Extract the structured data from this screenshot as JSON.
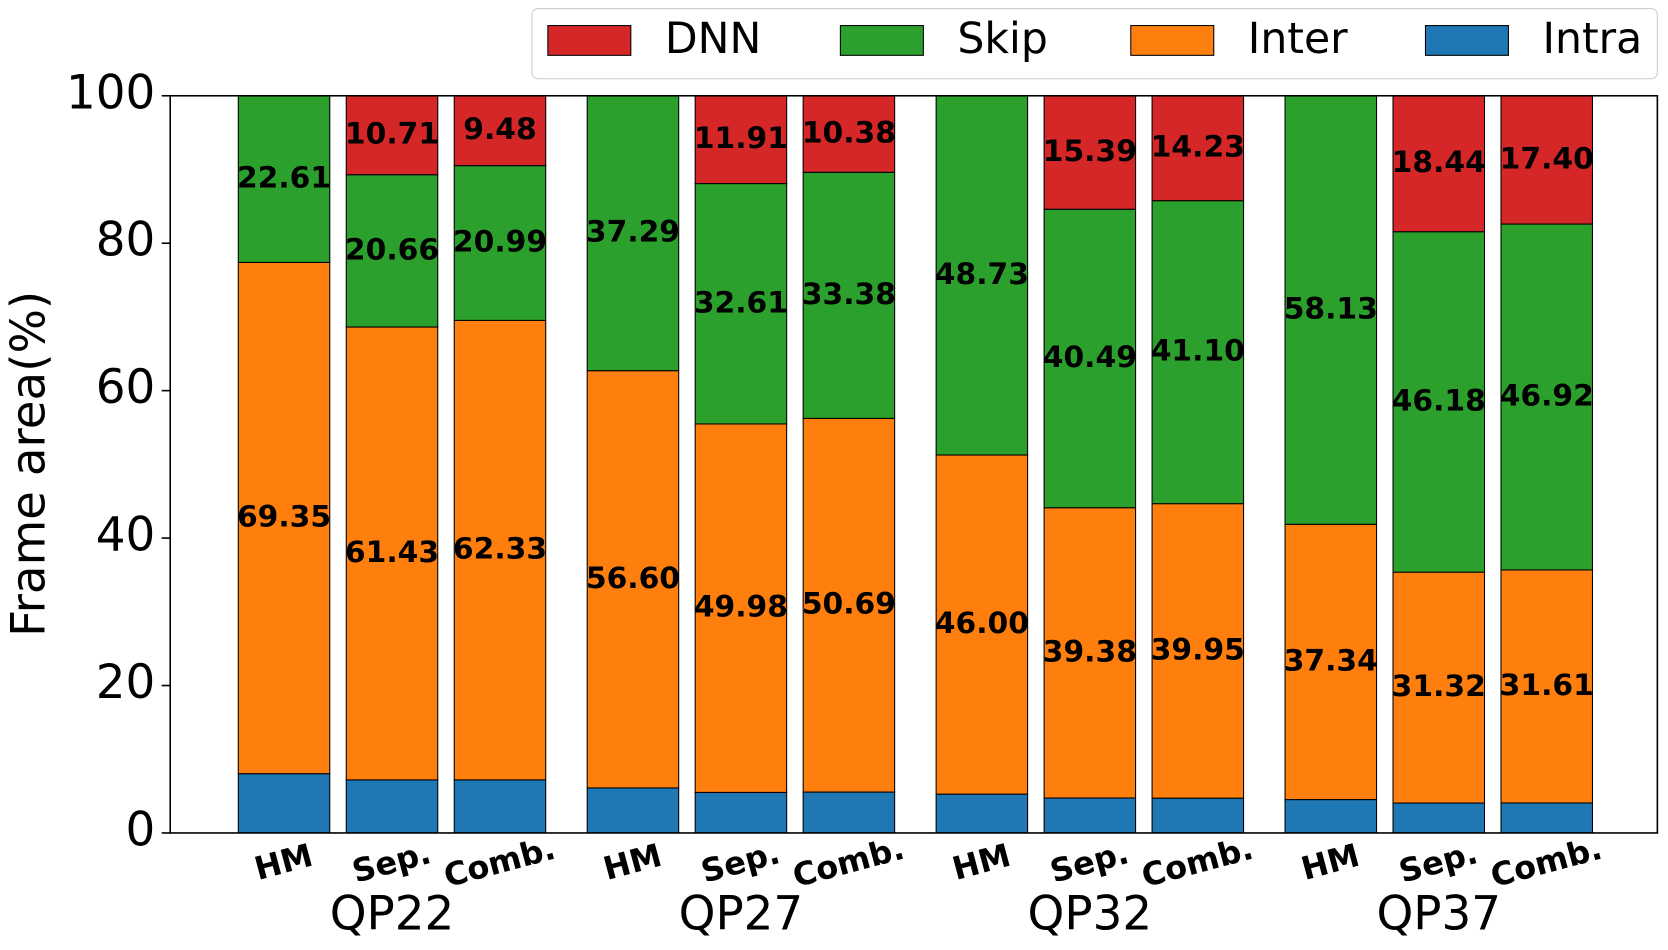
{
  "chart_data": {
    "type": "stacked_bar",
    "y_label": "Frame area(%)",
    "categories": [
      "HM",
      "Sep.",
      "Comb.",
      "HM",
      "Sep.",
      "Comb.",
      "HM",
      "Sep.",
      "Comb.",
      "HM",
      "Sep.",
      "Comb."
    ],
    "groups": [
      "QP22",
      "QP27",
      "QP32",
      "QP37"
    ],
    "series": [
      {
        "name": "DNN",
        "color": "#d62728",
        "values": [
          null,
          10.71,
          9.48,
          null,
          11.91,
          10.38,
          null,
          15.39,
          14.23,
          null,
          18.44,
          17.4
        ],
        "value_labels": [
          null,
          "10.71",
          "9.48",
          null,
          "11.91",
          "10.38",
          null,
          "15.39",
          "14.23",
          null,
          "18.44",
          "17.40"
        ]
      },
      {
        "name": "Skip",
        "color": "#2ca02c",
        "values": [
          22.61,
          20.66,
          20.99,
          37.29,
          32.61,
          33.38,
          48.73,
          40.49,
          41.1,
          58.13,
          46.18,
          46.92
        ],
        "value_labels": [
          "22.61",
          "20.66",
          "20.99",
          "37.29",
          "32.61",
          "33.38",
          "48.73",
          "40.49",
          "41.10",
          "58.13",
          "46.18",
          "46.92"
        ]
      },
      {
        "name": "Inter",
        "color": "#ff7f0e",
        "values": [
          69.35,
          61.43,
          62.33,
          56.6,
          49.98,
          50.69,
          46.0,
          39.38,
          39.95,
          37.34,
          31.32,
          31.61
        ],
        "value_labels": [
          "69.35",
          "61.43",
          "62.33",
          "56.60",
          "49.98",
          "50.69",
          "46.00",
          "39.38",
          "39.95",
          "37.34",
          "31.32",
          "31.61"
        ]
      },
      {
        "name": "Intra",
        "color": "#1f77b4",
        "values": [
          8.04,
          7.2,
          7.2,
          6.11,
          5.5,
          5.55,
          5.27,
          4.74,
          4.72,
          4.53,
          4.06,
          4.07
        ]
      }
    ],
    "ylim": [
      0,
      100
    ],
    "yticks": [
      0,
      20,
      40,
      60,
      80,
      100
    ],
    "legend": "top-right"
  }
}
